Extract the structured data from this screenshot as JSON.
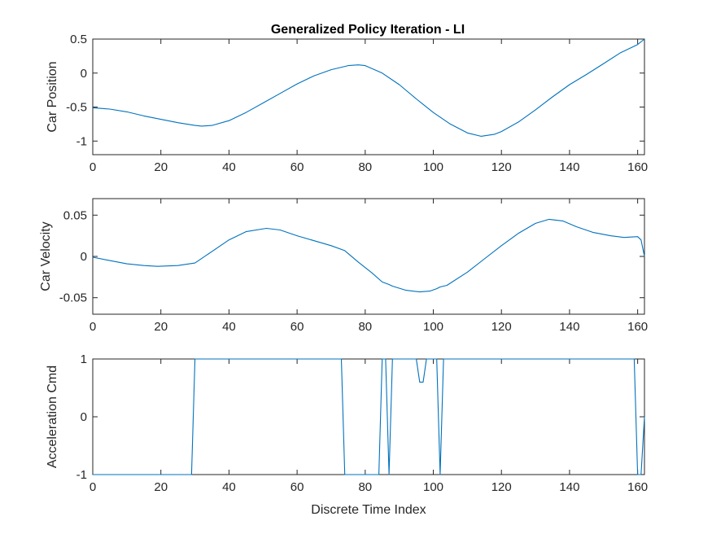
{
  "figure_title": "Generalized Policy Iteration - LI",
  "colors": {
    "line": "#0072BD",
    "axis": "#262626",
    "background": "#ffffff"
  },
  "chart_data": [
    {
      "type": "line",
      "title": "Generalized Policy Iteration - LI",
      "xlabel": "",
      "ylabel": "Car Position",
      "xlim": [
        0,
        162
      ],
      "ylim": [
        -1.2,
        0.5
      ],
      "xticks": [
        0,
        20,
        40,
        60,
        80,
        100,
        120,
        140,
        160
      ],
      "yticks": [
        -1,
        -0.5,
        0,
        0.5
      ],
      "xtick_labels": [
        "0",
        "20",
        "40",
        "60",
        "80",
        "100",
        "120",
        "140",
        "160"
      ],
      "ytick_labels": [
        "-1",
        "-0.5",
        "0",
        "0.5"
      ],
      "grid": false,
      "series": [
        {
          "x": [
            0,
            5,
            10,
            15,
            20,
            25,
            30,
            32,
            35,
            40,
            45,
            50,
            55,
            60,
            65,
            70,
            75,
            78,
            80,
            85,
            90,
            95,
            100,
            105,
            110,
            114,
            118,
            120,
            125,
            130,
            135,
            140,
            145,
            150,
            155,
            160,
            162
          ],
          "y": [
            -0.51,
            -0.53,
            -0.57,
            -0.63,
            -0.68,
            -0.73,
            -0.77,
            -0.78,
            -0.77,
            -0.7,
            -0.58,
            -0.44,
            -0.3,
            -0.16,
            -0.04,
            0.05,
            0.11,
            0.12,
            0.11,
            0.0,
            -0.17,
            -0.38,
            -0.58,
            -0.75,
            -0.88,
            -0.93,
            -0.9,
            -0.86,
            -0.72,
            -0.54,
            -0.35,
            -0.17,
            -0.02,
            0.14,
            0.3,
            0.42,
            0.5
          ]
        }
      ]
    },
    {
      "type": "line",
      "title": "",
      "xlabel": "",
      "ylabel": "Car Velocity",
      "xlim": [
        0,
        162
      ],
      "ylim": [
        -0.07,
        0.07
      ],
      "xticks": [
        0,
        20,
        40,
        60,
        80,
        100,
        120,
        140,
        160
      ],
      "yticks": [
        -0.05,
        0,
        0.05
      ],
      "xtick_labels": [
        "0",
        "20",
        "40",
        "60",
        "80",
        "100",
        "120",
        "140",
        "160"
      ],
      "ytick_labels": [
        "-0.05",
        "0",
        "0.05"
      ],
      "grid": false,
      "series": [
        {
          "x": [
            0,
            5,
            10,
            15,
            19,
            25,
            30,
            35,
            40,
            45,
            51,
            55,
            60,
            65,
            70,
            74,
            78,
            82,
            85,
            87,
            88,
            92,
            96,
            99,
            101,
            102,
            104,
            110,
            115,
            120,
            125,
            130,
            134,
            138,
            142,
            147,
            152,
            156,
            160,
            161,
            162
          ],
          "y": [
            -0.001,
            -0.005,
            -0.009,
            -0.011,
            -0.012,
            -0.011,
            -0.008,
            0.006,
            0.02,
            0.03,
            0.034,
            0.032,
            0.025,
            0.019,
            0.013,
            0.007,
            -0.007,
            -0.02,
            -0.031,
            -0.034,
            -0.036,
            -0.041,
            -0.043,
            -0.042,
            -0.039,
            -0.037,
            -0.035,
            -0.019,
            -0.003,
            0.013,
            0.028,
            0.04,
            0.045,
            0.043,
            0.036,
            0.029,
            0.025,
            0.023,
            0.024,
            0.02,
            0.0
          ]
        }
      ]
    },
    {
      "type": "line",
      "title": "",
      "xlabel": "Discrete Time Index",
      "ylabel": "Acceleration Cmd",
      "xlim": [
        0,
        162
      ],
      "ylim": [
        -1,
        1
      ],
      "xticks": [
        0,
        20,
        40,
        60,
        80,
        100,
        120,
        140,
        160
      ],
      "yticks": [
        -1,
        0,
        1
      ],
      "xtick_labels": [
        "0",
        "20",
        "40",
        "60",
        "80",
        "100",
        "120",
        "140",
        "160"
      ],
      "ytick_labels": [
        "-1",
        "0",
        "1"
      ],
      "grid": false,
      "series": [
        {
          "x": [
            0,
            29,
            30,
            73,
            74,
            84,
            85,
            86,
            87,
            88,
            95,
            96,
            97,
            98,
            99,
            100,
            101,
            102,
            103,
            159,
            160,
            161,
            162
          ],
          "y": [
            -1,
            -1,
            1,
            1,
            -1,
            -1,
            1,
            1,
            -1,
            1,
            1,
            0.6,
            0.6,
            1,
            1,
            1,
            1,
            -1,
            1,
            1,
            -1,
            -1,
            0
          ]
        }
      ]
    }
  ]
}
